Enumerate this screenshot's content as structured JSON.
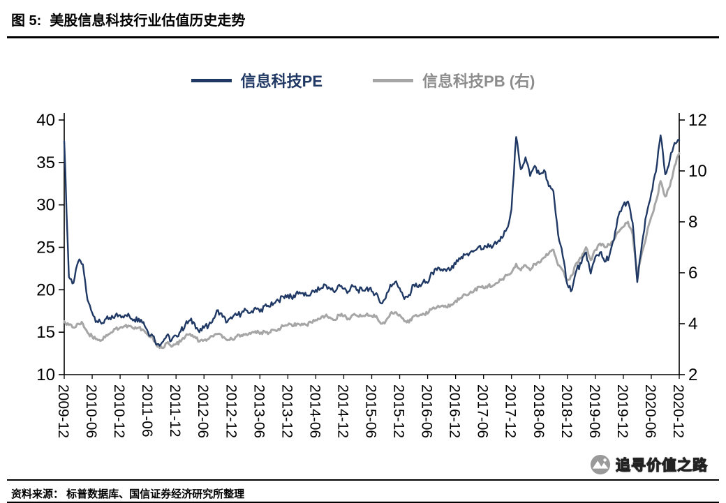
{
  "header": {
    "figure_label": "图 5:",
    "title": "美股信息科技行业估值历史走势"
  },
  "legend": {
    "pe": {
      "label": "信息科技PE",
      "color": "#1F3864"
    },
    "pb": {
      "label": "信息科技PB (右)",
      "color": "#A6A6A6"
    }
  },
  "footer": {
    "source": "资料来源： 标普数据库、国信证券经济研究所整理",
    "watermark": "追寻价值之路"
  },
  "chart_data": {
    "type": "line",
    "title": "美股信息科技行业估值历史走势",
    "grid": false,
    "legend_position": "top",
    "x_labels": [
      "2009-12",
      "2010-06",
      "2010-12",
      "2011-06",
      "2011-12",
      "2012-06",
      "2012-12",
      "2013-06",
      "2013-12",
      "2014-06",
      "2014-12",
      "2015-06",
      "2015-12",
      "2016-06",
      "2016-12",
      "2017-06",
      "2017-12",
      "2018-06",
      "2018-12",
      "2019-06",
      "2019-12",
      "2020-06",
      "2020-12"
    ],
    "months_per_label": 6,
    "left_axis": {
      "min": 10,
      "max": 40,
      "ticks": [
        10,
        15,
        20,
        25,
        30,
        35,
        40
      ]
    },
    "right_axis": {
      "min": 2,
      "max": 12,
      "ticks": [
        2,
        4,
        6,
        8,
        10,
        12
      ]
    },
    "series": [
      {
        "name": "信息科技PE",
        "axis": "left",
        "color": "#1F3864",
        "width": 2.4,
        "values": [
          37.5,
          21.5,
          20.8,
          23.3,
          23.0,
          18.8,
          17.3,
          16.3,
          16.0,
          16.6,
          16.5,
          17.0,
          17.0,
          17.0,
          16.9,
          16.5,
          16.6,
          16.2,
          15.0,
          14.6,
          13.6,
          13.8,
          14.6,
          14.0,
          14.6,
          15.1,
          15.9,
          16.4,
          16.0,
          15.0,
          15.5,
          15.8,
          16.6,
          17.6,
          16.8,
          16.2,
          16.6,
          17.0,
          17.2,
          17.6,
          17.3,
          17.9,
          17.4,
          18.1,
          18.0,
          18.4,
          18.7,
          19.2,
          19.4,
          18.9,
          19.8,
          19.6,
          19.3,
          19.6,
          20.0,
          20.1,
          20.6,
          20.2,
          19.7,
          20.6,
          20.1,
          19.8,
          20.4,
          20.0,
          19.9,
          20.3,
          19.8,
          19.6,
          18.4,
          19.0,
          20.6,
          20.9,
          20.2,
          18.9,
          19.4,
          20.6,
          20.3,
          20.9,
          20.8,
          22.0,
          22.3,
          22.4,
          22.2,
          22.4,
          23.0,
          23.6,
          24.1,
          24.3,
          24.6,
          25.1,
          24.8,
          25.4,
          25.1,
          25.6,
          26.1,
          27.2,
          29.5,
          38.0,
          34.2,
          35.6,
          33.4,
          34.6,
          33.6,
          34.1,
          32.2,
          31.6,
          26.5,
          24.0,
          20.6,
          20.0,
          22.4,
          23.1,
          24.4,
          21.9,
          23.9,
          24.4,
          23.3,
          24.0,
          25.9,
          28.8,
          30.0,
          30.4,
          27.9,
          20.9,
          25.4,
          28.9,
          31.4,
          33.9,
          38.2,
          33.6,
          35.4,
          37.3,
          37.6
        ]
      },
      {
        "name": "信息科技PB (右)",
        "axis": "right",
        "color": "#A6A6A6",
        "width": 3,
        "values": [
          4.1,
          3.95,
          3.85,
          4.0,
          4.0,
          3.65,
          3.5,
          3.4,
          3.35,
          3.55,
          3.65,
          3.8,
          3.85,
          3.9,
          3.9,
          3.8,
          3.85,
          3.75,
          3.55,
          3.45,
          3.1,
          3.05,
          3.25,
          3.1,
          3.2,
          3.3,
          3.5,
          3.6,
          3.5,
          3.3,
          3.35,
          3.4,
          3.5,
          3.6,
          3.45,
          3.35,
          3.4,
          3.5,
          3.55,
          3.6,
          3.6,
          3.7,
          3.6,
          3.7,
          3.65,
          3.75,
          3.8,
          3.9,
          3.95,
          3.9,
          4.0,
          4.0,
          3.95,
          4.05,
          4.15,
          4.2,
          4.3,
          4.25,
          4.15,
          4.35,
          4.3,
          4.2,
          4.35,
          4.3,
          4.3,
          4.4,
          4.3,
          4.3,
          4.0,
          4.1,
          4.4,
          4.45,
          4.35,
          4.1,
          4.05,
          4.3,
          4.3,
          4.4,
          4.4,
          4.6,
          4.65,
          4.7,
          4.65,
          4.75,
          4.9,
          5.0,
          5.15,
          5.2,
          5.3,
          5.45,
          5.4,
          5.5,
          5.5,
          5.6,
          5.75,
          5.9,
          6.0,
          6.35,
          6.1,
          6.3,
          6.1,
          6.35,
          6.4,
          6.6,
          6.75,
          6.9,
          6.3,
          6.1,
          5.7,
          5.9,
          6.4,
          6.6,
          7.0,
          6.5,
          6.9,
          7.15,
          7.0,
          7.1,
          7.3,
          7.6,
          7.8,
          8.0,
          7.5,
          5.9,
          6.8,
          7.5,
          8.2,
          8.8,
          9.6,
          9.0,
          9.4,
          10.2,
          10.7
        ]
      }
    ]
  }
}
